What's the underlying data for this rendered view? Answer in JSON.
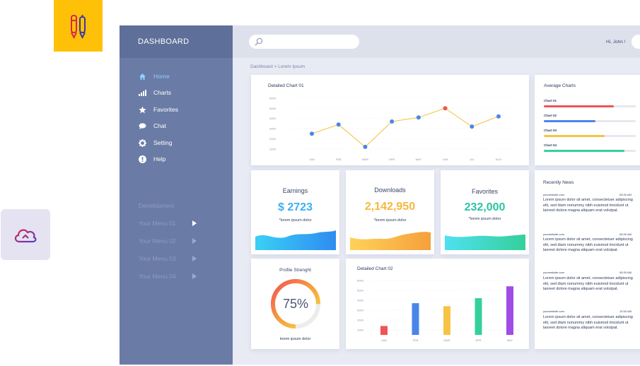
{
  "app": {
    "brand": "DASHBOARD",
    "greeting": "Hi, John !",
    "breadcrumb": "Dashboard > Lorem Ipsum"
  },
  "colors": {
    "sidebar": "#6A7BA6",
    "active": "#8FD0FF",
    "accent_yellow": "#FFC107"
  },
  "sidebar": {
    "items": [
      {
        "label": "Home",
        "icon": "home-icon",
        "active": true
      },
      {
        "label": "Charts",
        "icon": "bar-chart-icon"
      },
      {
        "label": "Favorites",
        "icon": "star-icon"
      },
      {
        "label": "Chat",
        "icon": "chat-icon"
      },
      {
        "label": "Setting",
        "icon": "gear-icon"
      },
      {
        "label": "Help",
        "icon": "info-icon"
      }
    ],
    "section_title": "Development",
    "menus": [
      "Your Menu 01",
      "Your Menu 02",
      "Your Menu 03",
      "Your Menu 04"
    ]
  },
  "search": {
    "placeholder": ""
  },
  "stats": [
    {
      "title": "Earnings",
      "value": "$ 2723",
      "sub": "*lorem ipsum dolor",
      "color": "#3BB0F0"
    },
    {
      "title": "Downloads",
      "value": "2,142,950",
      "sub": "*lorem ipsum dolor",
      "color": "#F6B73C"
    },
    {
      "title": "Favorites",
      "value": "232,000",
      "sub": "*lorem ipsum dolor",
      "color": "#2BC4A2"
    }
  ],
  "profile": {
    "title": "Profile Strenght",
    "percent": "75%",
    "value": 0.75,
    "caption": "lorem ipsum dolor"
  },
  "average": {
    "title": "Average Charts",
    "bars": [
      {
        "label": "Chart 01",
        "value": 0.76,
        "color": "#F05454"
      },
      {
        "label": "Chart 02",
        "value": 0.56,
        "color": "#4A86E8"
      },
      {
        "label": "Chart 03",
        "value": 0.66,
        "color": "#F6C445"
      },
      {
        "label": "Chart 04",
        "value": 0.88,
        "color": "#35D09A"
      }
    ]
  },
  "news": {
    "title": "Recently News",
    "items": [
      {
        "site": "yourwebsite.com",
        "time": "06:30 AM",
        "text": "Lorem ipsum dolor sit amet, consectetuer adipiscing elit, sed diam nonummy nibh euismod tincidunt ut laoreet dolore magna aliquam erat volutpat."
      },
      {
        "site": "yourwebsite.com",
        "time": "06:30 AM",
        "text": "Lorem ipsum dolor sit amet, consectetuer adipiscing elit, sed diam nonummy nibh euismod tincidunt ut laoreet dolore magna aliquam erat volutpat."
      },
      {
        "site": "yourwebsite.com",
        "time": "06:30 AM",
        "text": "Lorem ipsum dolor sit amet, consectetuer adipiscing elit, sed diam nonummy nibh euismod tincidunt ut laoreet dolore magna aliquam erat volutpat."
      },
      {
        "site": "yourwebsite.com",
        "time": "10:30 AM",
        "text": "Lorem ipsum dolor sit amet, consectetuer adipiscing elit, sed diam nonummy nibh euismod tincidunt ut laoreet dolore magna aliquam erat volutpat."
      }
    ]
  },
  "chart_data": [
    {
      "type": "line",
      "title": "Detailed Chart 01",
      "categories": [
        "JAN",
        "FEB",
        "MAR",
        "APR",
        "MAY",
        "JUN",
        "JUL",
        "AUG"
      ],
      "values": [
        2500,
        3400,
        1200,
        3700,
        4100,
        5000,
        3200,
        4200
      ],
      "yticks": [
        "6000",
        "5000",
        "4000",
        "3000",
        "2000",
        "1000"
      ],
      "ylim": [
        500,
        6200
      ],
      "line_color": "#F6C445",
      "point_color": "#4A86E8",
      "highlight_index": 5,
      "highlight_color": "#F05454"
    },
    {
      "type": "bar",
      "title": "Detailed Chart 02",
      "categories": [
        "JAN",
        "FEB",
        "MAR",
        "APR",
        "MAY"
      ],
      "values": [
        1400,
        3700,
        3400,
        4200,
        5400
      ],
      "colors": [
        "#F05454",
        "#4A86E8",
        "#F6C445",
        "#35D09A",
        "#A24CE6"
      ],
      "yticks": [
        "6000",
        "5000",
        "4000",
        "3000",
        "2000",
        "1000"
      ],
      "ylim": [
        500,
        6200
      ]
    }
  ]
}
